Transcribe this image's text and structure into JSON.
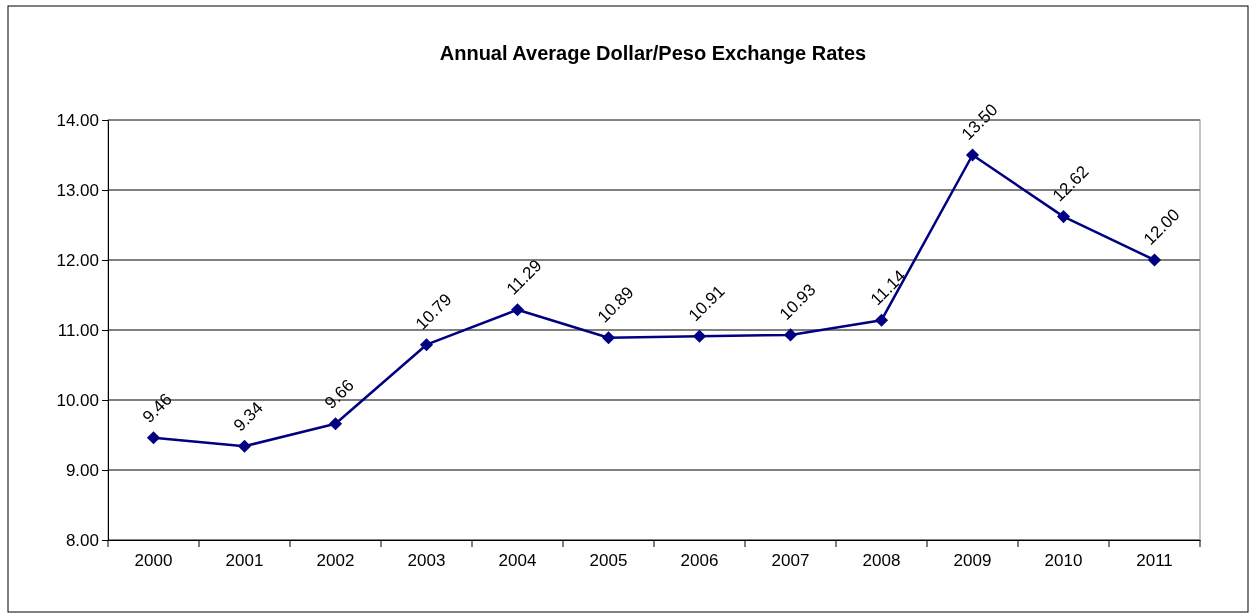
{
  "chart_data": {
    "type": "line",
    "title": "Annual Average Dollar/Peso Exchange Rates",
    "categories": [
      "2000",
      "2001",
      "2002",
      "2003",
      "2004",
      "2005",
      "2006",
      "2007",
      "2008",
      "2009",
      "2010",
      "2011"
    ],
    "series": [
      {
        "color": "#000080",
        "values": [
          9.46,
          9.34,
          9.66,
          10.79,
          11.29,
          10.89,
          10.91,
          10.93,
          11.14,
          13.5,
          12.62,
          12.0
        ],
        "value_labels": [
          "9.46",
          "9.34",
          "9.66",
          "10.79",
          "11.29",
          "10.89",
          "10.91",
          "10.93",
          "11.14",
          "13.50",
          "12.62",
          "12.00"
        ]
      }
    ],
    "ylim": [
      8,
      14
    ],
    "yticks": [
      {
        "value": 8,
        "label": "8.00"
      },
      {
        "value": 9,
        "label": "9.00"
      },
      {
        "value": 10,
        "label": "10.00"
      },
      {
        "value": 11,
        "label": "11.00"
      },
      {
        "value": 12,
        "label": "12.00"
      },
      {
        "value": 13,
        "label": "13.00"
      },
      {
        "value": 14,
        "label": "14.00"
      }
    ],
    "grid": "y",
    "marker": "diamond",
    "line_style": "solid"
  }
}
